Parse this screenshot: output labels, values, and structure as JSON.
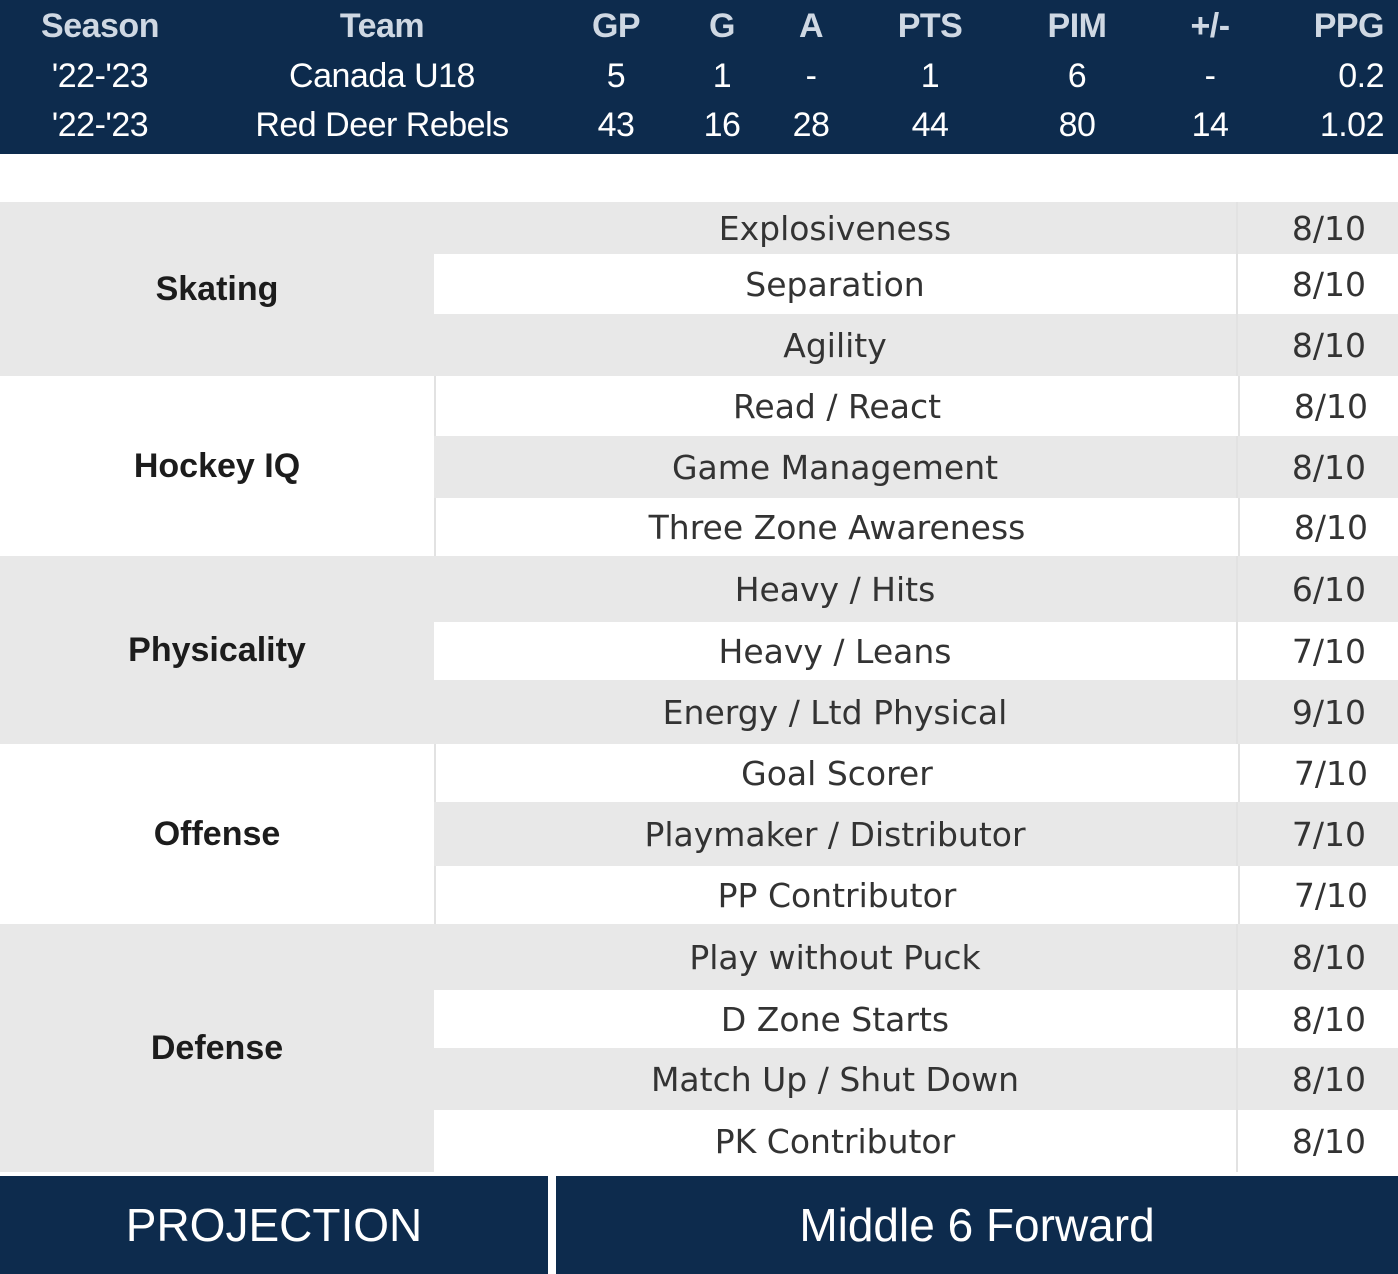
{
  "stats": {
    "headers": [
      "Season",
      "Team",
      "GP",
      "G",
      "A",
      "PTS",
      "PIM",
      "+/-",
      "PPG"
    ],
    "rows": [
      [
        "'22-'23",
        "Canada U18",
        "5",
        "1",
        "-",
        "1",
        "6",
        "-",
        "0.2"
      ],
      [
        "'22-'23",
        "Red Deer Rebels",
        "43",
        "16",
        "28",
        "44",
        "80",
        "14",
        "1.02"
      ]
    ]
  },
  "ratings": [
    {
      "category": "Skating",
      "items": [
        {
          "label": "Explosiveness",
          "score": "8/10"
        },
        {
          "label": "Separation",
          "score": "8/10"
        },
        {
          "label": "Agility",
          "score": "8/10"
        }
      ]
    },
    {
      "category": "Hockey IQ",
      "items": [
        {
          "label": "Read / React",
          "score": "8/10"
        },
        {
          "label": "Game Management",
          "score": "8/10"
        },
        {
          "label": "Three Zone Awareness",
          "score": "8/10"
        }
      ]
    },
    {
      "category": "Physicality",
      "items": [
        {
          "label": "Heavy / Hits",
          "score": "6/10"
        },
        {
          "label": "Heavy / Leans",
          "score": "7/10"
        },
        {
          "label": "Energy / Ltd Physical",
          "score": "9/10"
        }
      ]
    },
    {
      "category": "Offense",
      "items": [
        {
          "label": "Goal Scorer",
          "score": "7/10"
        },
        {
          "label": "Playmaker / Distributor",
          "score": "7/10"
        },
        {
          "label": "PP Contributor",
          "score": "7/10"
        }
      ]
    },
    {
      "category": "Defense",
      "items": [
        {
          "label": "Play without Puck",
          "score": "8/10"
        },
        {
          "label": "D Zone Starts",
          "score": "8/10"
        },
        {
          "label": "Match Up / Shut Down",
          "score": "8/10"
        },
        {
          "label": "PK Contributor",
          "score": "8/10"
        }
      ]
    }
  ],
  "projection": {
    "label": "PROJECTION",
    "value": "Middle 6 Forward"
  },
  "colors": {
    "navy": "#0d2b4d",
    "row_shade": "#e8e8e8"
  }
}
